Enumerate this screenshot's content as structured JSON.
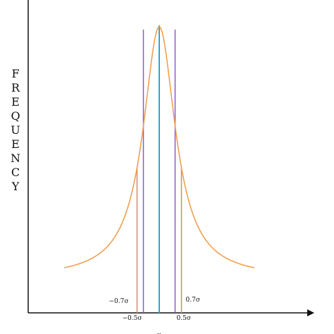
{
  "chart_data": {
    "type": "line",
    "ylabel": "FREQUENCY",
    "xlabel": "μ",
    "colors": {
      "curve": "#f0a050",
      "outer_lines": "#d88870",
      "mid_lines": "#8a5cc8",
      "center_line": "#2aa8d8",
      "axis": "#111111"
    },
    "vertical_markers": [
      {
        "label": "−0.7σ",
        "value": -0.7,
        "role": "outer"
      },
      {
        "label": "−0.5σ",
        "value": -0.5,
        "role": "mid"
      },
      {
        "label": "",
        "value": 0,
        "role": "center"
      },
      {
        "label": "0.5σ",
        "value": 0.5,
        "role": "mid"
      },
      {
        "label": "0.7σ",
        "value": 0.7,
        "role": "outer"
      }
    ],
    "curve_shape": "cauchy-like bell",
    "x_range": [
      -3.0,
      3.0
    ]
  }
}
